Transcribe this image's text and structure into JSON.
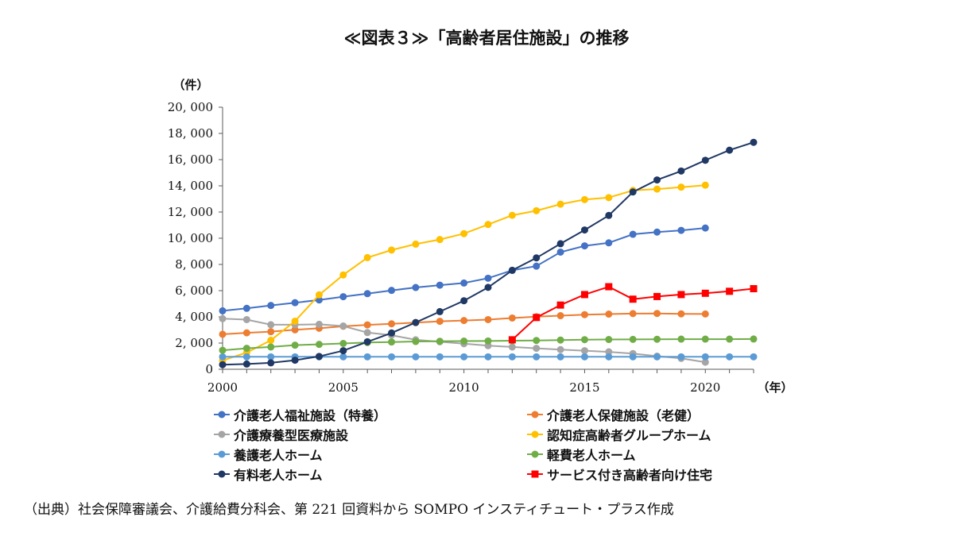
{
  "title": "≪図表３≫「高齢者居住施設」の推移",
  "source": "（出典）社会保障審議会、介護給費分科会、第 221 回資料から SOMPO インスティチュート・プラス作成",
  "chart_data": {
    "type": "line",
    "y_unit": "（件）",
    "x_unit": "（年）",
    "xlim": [
      2000,
      2022
    ],
    "ylim": [
      0,
      20000
    ],
    "x_ticks": [
      2000,
      2005,
      2010,
      2015,
      2020
    ],
    "y_ticks": [
      0,
      2000,
      4000,
      6000,
      8000,
      10000,
      12000,
      14000,
      16000,
      18000,
      20000
    ],
    "y_tick_labels": [
      "0",
      "2, 000",
      "4, 000",
      "6, 000",
      "8, 000",
      "10, 000",
      "12, 000",
      "14, 000",
      "16, 000",
      "18, 000",
      "20, 000"
    ],
    "legend_position": "bottom",
    "series": [
      {
        "name": "介護老人福祉施設（特養）",
        "color": "#4472C4",
        "marker": "circle",
        "x": [
          2000,
          2001,
          2002,
          2003,
          2004,
          2005,
          2006,
          2007,
          2008,
          2009,
          2010,
          2011,
          2012,
          2013,
          2014,
          2015,
          2016,
          2017,
          2018,
          2019,
          2020
        ],
        "values": [
          4460,
          4650,
          4870,
          5080,
          5290,
          5540,
          5770,
          6020,
          6240,
          6420,
          6580,
          6950,
          7550,
          7870,
          8940,
          9420,
          9650,
          10300,
          10470,
          10600,
          10780
        ]
      },
      {
        "name": "介護老人保健施設（老健）",
        "color": "#ED7D31",
        "marker": "circle",
        "x": [
          2000,
          2001,
          2002,
          2003,
          2004,
          2005,
          2006,
          2007,
          2008,
          2009,
          2010,
          2011,
          2012,
          2013,
          2014,
          2015,
          2016,
          2017,
          2018,
          2019,
          2020
        ],
        "values": [
          2670,
          2780,
          2870,
          3010,
          3130,
          3280,
          3390,
          3470,
          3560,
          3660,
          3720,
          3790,
          3910,
          4010,
          4090,
          4170,
          4210,
          4250,
          4260,
          4230,
          4220
        ]
      },
      {
        "name": "介護療養型医療施設",
        "color": "#A5A5A5",
        "marker": "circle",
        "x": [
          2000,
          2001,
          2002,
          2003,
          2004,
          2005,
          2006,
          2007,
          2008,
          2009,
          2010,
          2011,
          2012,
          2013,
          2014,
          2015,
          2016,
          2017,
          2018,
          2019,
          2020
        ],
        "values": [
          3860,
          3790,
          3400,
          3400,
          3430,
          3300,
          2800,
          2600,
          2250,
          2100,
          1950,
          1800,
          1700,
          1600,
          1500,
          1420,
          1330,
          1200,
          1000,
          830,
          540
        ]
      },
      {
        "name": "認知症高齢者グループホーム",
        "color": "#FFC000",
        "marker": "circle",
        "x": [
          2000,
          2001,
          2002,
          2003,
          2004,
          2005,
          2006,
          2007,
          2008,
          2009,
          2010,
          2011,
          2012,
          2013,
          2014,
          2015,
          2016,
          2017,
          2018,
          2019,
          2020
        ],
        "values": [
          670,
          1270,
          2210,
          3670,
          5680,
          7200,
          8520,
          9100,
          9550,
          9900,
          10350,
          11050,
          11750,
          12100,
          12600,
          12950,
          13100,
          13650,
          13750,
          13900,
          14050
        ]
      },
      {
        "name": "養護老人ホーム",
        "color": "#5B9BD5",
        "marker": "circle",
        "x": [
          2000,
          2001,
          2002,
          2003,
          2004,
          2005,
          2006,
          2007,
          2008,
          2009,
          2010,
          2011,
          2012,
          2013,
          2014,
          2015,
          2016,
          2017,
          2018,
          2019,
          2020,
          2021,
          2022
        ],
        "values": [
          950,
          950,
          950,
          950,
          950,
          950,
          950,
          950,
          950,
          950,
          950,
          950,
          950,
          950,
          950,
          950,
          950,
          950,
          950,
          950,
          950,
          950,
          950
        ]
      },
      {
        "name": "軽費老人ホーム",
        "color": "#70AD47",
        "marker": "circle",
        "x": [
          2000,
          2001,
          2002,
          2003,
          2004,
          2005,
          2006,
          2007,
          2008,
          2009,
          2010,
          2011,
          2012,
          2013,
          2014,
          2015,
          2016,
          2017,
          2018,
          2019,
          2020,
          2021,
          2022
        ],
        "values": [
          1450,
          1600,
          1700,
          1840,
          1900,
          1970,
          2040,
          2080,
          2120,
          2140,
          2150,
          2160,
          2180,
          2200,
          2230,
          2260,
          2270,
          2280,
          2290,
          2300,
          2300,
          2300,
          2310
        ]
      },
      {
        "name": "有料老人ホーム",
        "color": "#203864",
        "marker": "circle",
        "x": [
          2000,
          2001,
          2002,
          2003,
          2004,
          2005,
          2006,
          2007,
          2008,
          2009,
          2010,
          2011,
          2012,
          2013,
          2014,
          2015,
          2016,
          2017,
          2018,
          2019,
          2020,
          2021,
          2022
        ],
        "values": [
          350,
          400,
          490,
          690,
          980,
          1420,
          2100,
          2770,
          3570,
          4400,
          5230,
          6250,
          7550,
          8500,
          9580,
          10630,
          11740,
          13530,
          14450,
          15130,
          15950,
          16720,
          17320
        ]
      },
      {
        "name": "サービス付き高齢者向け住宅",
        "color": "#FF0000",
        "marker": "square",
        "x": [
          2012,
          2013,
          2014,
          2015,
          2016,
          2017,
          2018,
          2019,
          2020,
          2021,
          2022
        ],
        "values": [
          2250,
          3950,
          4900,
          5700,
          6300,
          5350,
          5550,
          5700,
          5800,
          5950,
          6150
        ]
      }
    ]
  }
}
